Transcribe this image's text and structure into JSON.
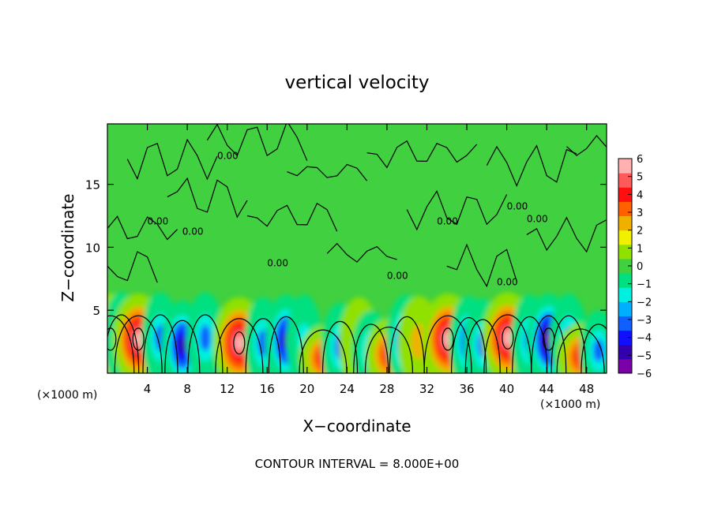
{
  "chart_data": {
    "type": "heatmap",
    "title": "vertical velocity",
    "xlabel": "X−coordinate",
    "ylabel": "Z−coordinate",
    "x_unit": "(×1000 m)",
    "y_unit": "(×1000 m)",
    "xlim": [
      0,
      50
    ],
    "ylim": [
      0,
      19.8
    ],
    "x_ticks": [
      4,
      8,
      12,
      16,
      20,
      24,
      28,
      32,
      36,
      40,
      44,
      48
    ],
    "y_ticks": [
      5,
      10,
      15
    ],
    "footer": "CONTOUR INTERVAL = 8.000E+00",
    "contour_label": "0.00",
    "colorbar": {
      "ticks": [
        "6",
        "5",
        "4",
        "3",
        "2",
        "1",
        "0",
        "−1",
        "−2",
        "−3",
        "−4",
        "−5",
        "−6"
      ],
      "range": [
        -6,
        6
      ],
      "colors": [
        "#7a00a8",
        "#3300b0",
        "#1010ff",
        "#1060ff",
        "#00b0ff",
        "#00f0e0",
        "#00e080",
        "#40d040",
        "#90e000",
        "#f0f000",
        "#f0b000",
        "#ff6000",
        "#ff1010",
        "#ff5a5a",
        "#ffb0b0"
      ]
    },
    "background_value": 0,
    "cells": [
      {
        "x": 0.3,
        "z": 2.7,
        "w": 6
      },
      {
        "x": 1.4,
        "z": 2.8,
        "w": -3
      },
      {
        "x": 3.1,
        "z": 2.7,
        "w": 6
      },
      {
        "x": 5.3,
        "z": 2.8,
        "w": -3
      },
      {
        "x": 7.5,
        "z": 2.2,
        "w": -5
      },
      {
        "x": 9.8,
        "z": 2.8,
        "w": -3
      },
      {
        "x": 13.2,
        "z": 2.4,
        "w": 6
      },
      {
        "x": 15.6,
        "z": 2.4,
        "w": -3
      },
      {
        "x": 17.9,
        "z": 2.6,
        "w": -5
      },
      {
        "x": 19.7,
        "z": 2.6,
        "w": -2
      },
      {
        "x": 21.6,
        "z": 1.2,
        "w": 4
      },
      {
        "x": 23.3,
        "z": 2.1,
        "w": -3
      },
      {
        "x": 25.2,
        "z": 2.4,
        "w": 1
      },
      {
        "x": 26.4,
        "z": 1.8,
        "w": -3
      },
      {
        "x": 28.2,
        "z": 1.5,
        "w": 4
      },
      {
        "x": 30.0,
        "z": 2.6,
        "w": -5
      },
      {
        "x": 31.2,
        "z": 2.5,
        "w": 2
      },
      {
        "x": 34.1,
        "z": 2.7,
        "w": 6
      },
      {
        "x": 36.2,
        "z": 2.5,
        "w": -4
      },
      {
        "x": 37.6,
        "z": 2.3,
        "w": -3
      },
      {
        "x": 40.1,
        "z": 2.8,
        "w": 6
      },
      {
        "x": 42.3,
        "z": 2.6,
        "w": -3
      },
      {
        "x": 44.2,
        "z": 2.7,
        "w": -6
      },
      {
        "x": 46.2,
        "z": 2.7,
        "w": -3
      },
      {
        "x": 47.4,
        "z": 1.3,
        "w": 4
      },
      {
        "x": 49.2,
        "z": 1.8,
        "w": -3
      }
    ]
  }
}
